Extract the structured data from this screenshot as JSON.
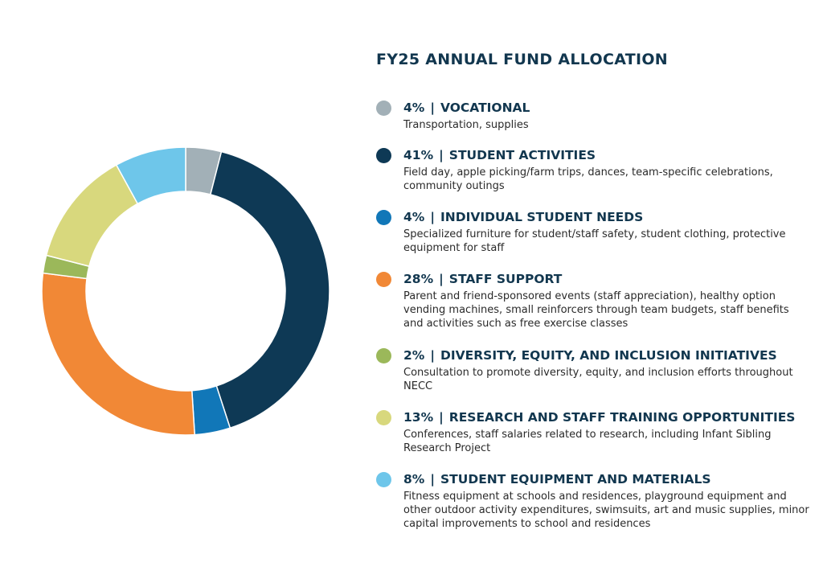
{
  "title": "FY25 ANNUAL FUND ALLOCATION",
  "chart_data": {
    "type": "pie",
    "style": "donut",
    "title": "FY25 ANNUAL FUND ALLOCATION",
    "legend_position": "right",
    "categories": [
      "VOCATIONAL",
      "STUDENT ACTIVITIES",
      "INDIVIDUAL STUDENT NEEDS",
      "STAFF SUPPORT",
      "DIVERSITY, EQUITY, AND INCLUSION INITIATIVES",
      "RESEARCH AND STAFF TRAINING OPPORTUNITIES",
      "STUDENT EQUIPMENT AND MATERIALS"
    ],
    "values": [
      4,
      41,
      4,
      28,
      2,
      13,
      8
    ],
    "colors": [
      "#a2b0b7",
      "#0e3955",
      "#1177b8",
      "#f18836",
      "#9bb85a",
      "#d8d87d",
      "#6ec6ea"
    ]
  },
  "legend": [
    {
      "pct": "4%",
      "sep": "|",
      "label": "VOCATIONAL",
      "desc": "Transportation, supplies",
      "color": "#a2b0b7"
    },
    {
      "pct": "41%",
      "sep": "|",
      "label": "STUDENT ACTIVITIES",
      "desc": "Field day, apple picking/farm trips, dances, team-specific celebrations, community outings",
      "color": "#0e3955"
    },
    {
      "pct": "4%",
      "sep": "|",
      "label": "INDIVIDUAL STUDENT NEEDS",
      "desc": "Specialized furniture for student/staff safety, student clothing, protective equipment for staff",
      "color": "#1177b8"
    },
    {
      "pct": "28%",
      "sep": "|",
      "label": "STAFF SUPPORT",
      "desc": "Parent and friend-sponsored events (staff appreciation), healthy option vending machines, small reinforcers through team budgets, staff benefits and activities such as free exercise classes",
      "color": "#f18836"
    },
    {
      "pct": "2%",
      "sep": "|",
      "label": "DIVERSITY, EQUITY, AND INCLUSION INITIATIVES",
      "desc": "Consultation to promote diversity, equity, and inclusion efforts throughout NECC",
      "color": "#9bb85a"
    },
    {
      "pct": "13%",
      "sep": "|",
      "label": "RESEARCH AND STAFF TRAINING OPPORTUNITIES",
      "desc": "Conferences, staff salaries related to research, including Infant Sibling Research Project",
      "color": "#d8d87d"
    },
    {
      "pct": "8%",
      "sep": "|",
      "label": "STUDENT EQUIPMENT AND MATERIALS",
      "desc": "Fitness equipment at schools and residences, playground equipment and other outdoor activity expenditures, swimsuits, art and music supplies, minor capital improvements to school and residences",
      "color": "#6ec6ea"
    }
  ]
}
